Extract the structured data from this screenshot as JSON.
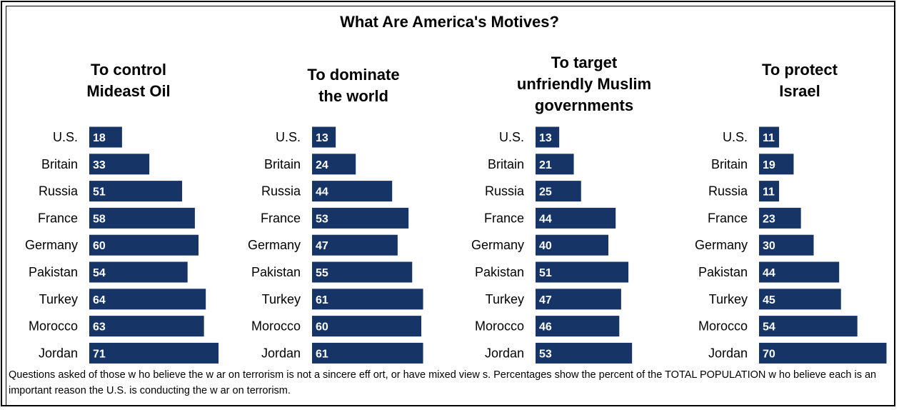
{
  "title": "What Are America's Motives?",
  "footnote": "Questions asked of those w ho believe the w ar on terrorism is not a sincere eff ort, or have mixed view s.  Percentages show  the percent of the TOTAL POPULATION w ho believe each is an important reason the U.S. is conducting the w ar on terrorism.",
  "colors": {
    "bar": "#163566",
    "bar_label": "#ffffff"
  },
  "chart_data": [
    {
      "type": "bar",
      "orientation": "horizontal",
      "title_lines": [
        "To control",
        "Mideast Oil"
      ],
      "categories": [
        "U.S.",
        "Britain",
        "Russia",
        "France",
        "Germany",
        "Pakistan",
        "Turkey",
        "Morocco",
        "Jordan"
      ],
      "values": [
        18,
        33,
        51,
        58,
        60,
        54,
        64,
        63,
        71
      ]
    },
    {
      "type": "bar",
      "orientation": "horizontal",
      "title_lines": [
        "To dominate",
        "the world"
      ],
      "categories": [
        "U.S.",
        "Britain",
        "Russia",
        "France",
        "Germany",
        "Pakistan",
        "Turkey",
        "Morocco",
        "Jordan"
      ],
      "values": [
        13,
        24,
        44,
        53,
        47,
        55,
        61,
        60,
        61
      ]
    },
    {
      "type": "bar",
      "orientation": "horizontal",
      "title_lines": [
        "To target",
        "unfriendly Muslim",
        "governments"
      ],
      "categories": [
        "U.S.",
        "Britain",
        "Russia",
        "France",
        "Germany",
        "Pakistan",
        "Turkey",
        "Morocco",
        "Jordan"
      ],
      "values": [
        13,
        21,
        25,
        44,
        40,
        51,
        47,
        46,
        53
      ]
    },
    {
      "type": "bar",
      "orientation": "horizontal",
      "title_lines": [
        "To protect",
        "Israel"
      ],
      "categories": [
        "U.S.",
        "Britain",
        "Russia",
        "France",
        "Germany",
        "Pakistan",
        "Turkey",
        "Morocco",
        "Jordan"
      ],
      "values": [
        11,
        19,
        11,
        23,
        30,
        44,
        45,
        54,
        70
      ]
    }
  ]
}
